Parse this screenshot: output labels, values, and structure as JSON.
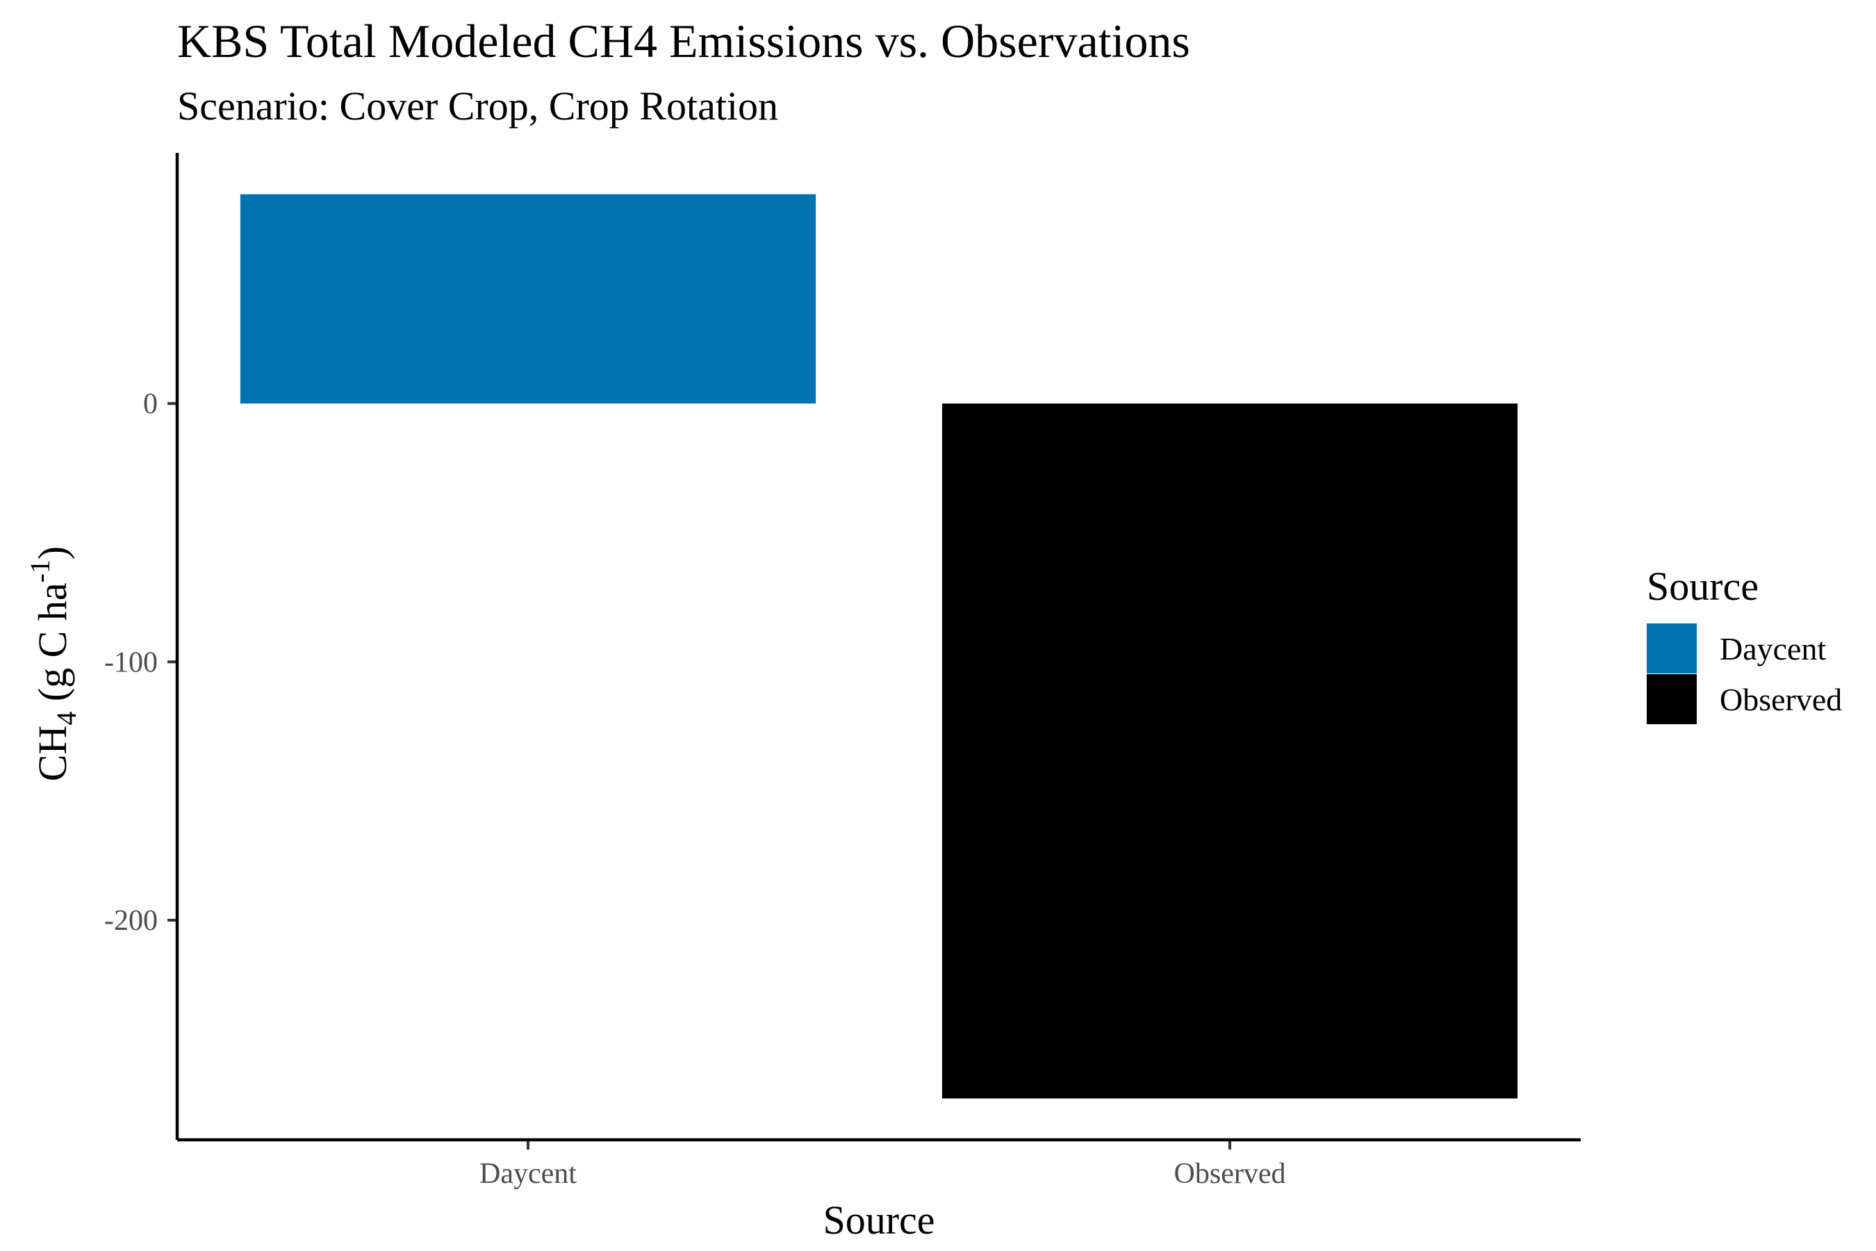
{
  "chart_data": {
    "type": "bar",
    "title": "KBS Total Modeled CH4 Emissions vs. Observations",
    "subtitle": "Scenario: Cover Crop, Crop Rotation",
    "categories": [
      "Daycent",
      "Observed"
    ],
    "values": [
      81,
      -269
    ],
    "colors": [
      "#0072B2",
      "#000000"
    ],
    "xlabel": "Source",
    "ylabel": {
      "main": "CH",
      "sub": "4",
      "unit": " (g C ha",
      "sup": "-1",
      "close": ")"
    },
    "ylim": [
      -285,
      97
    ],
    "yticks": [
      0,
      -100,
      -200
    ],
    "ytick_labels": [
      "0",
      "-100",
      "-200"
    ],
    "grid": false,
    "legend": {
      "title": "Source",
      "position": "right",
      "entries": [
        {
          "label": "Daycent",
          "color": "#0072B2"
        },
        {
          "label": "Observed",
          "color": "#000000"
        }
      ]
    }
  }
}
